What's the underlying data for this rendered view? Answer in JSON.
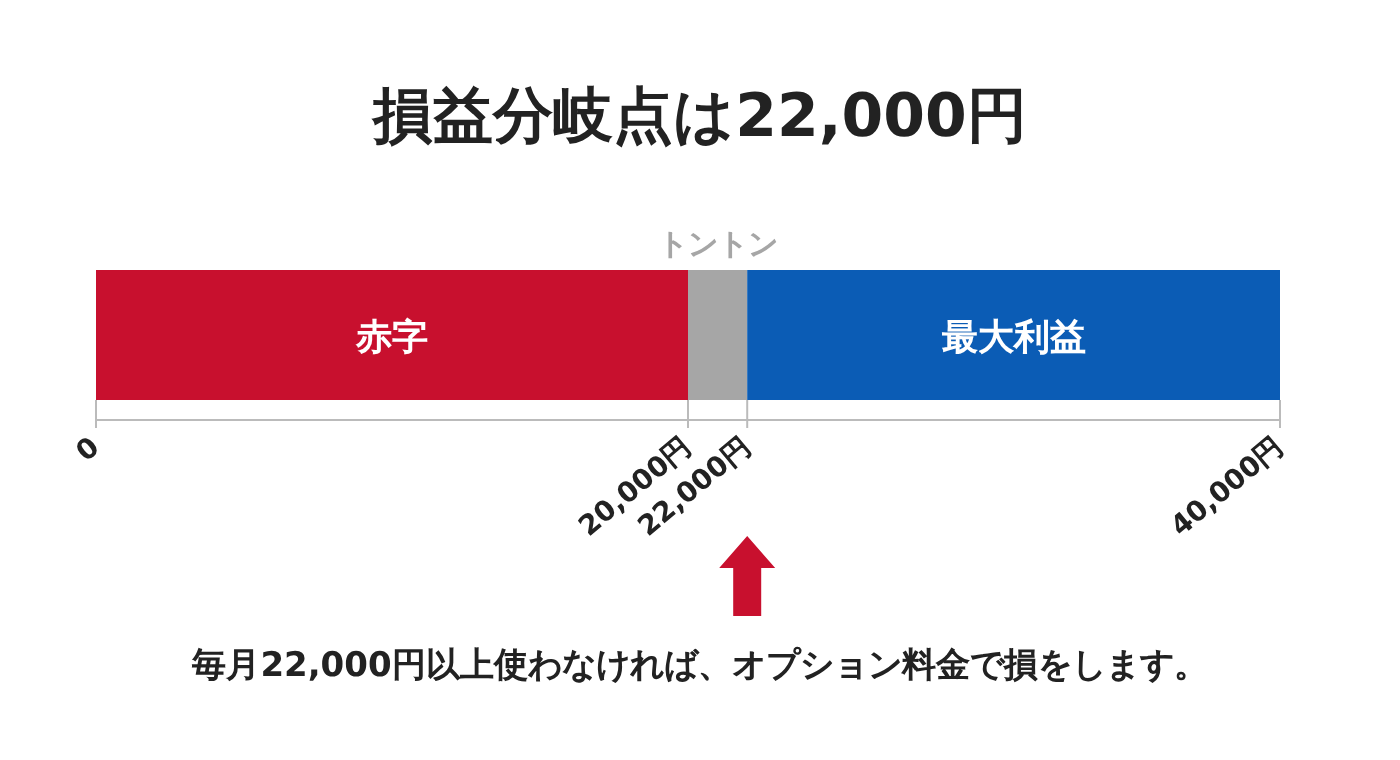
{
  "chart_data": {
    "type": "bar",
    "orientation": "horizontal",
    "stacked": true,
    "title": "損益分岐点は22,000円",
    "categories": [
      null
    ],
    "series": [
      {
        "name": "赤字",
        "color": "#c8102e",
        "values": [
          20000
        ]
      },
      {
        "name": "トントン",
        "color": "#a6a6a6",
        "values": [
          2000
        ]
      },
      {
        "name": "最大利益",
        "color": "#0b5cb5",
        "values": [
          18000
        ]
      }
    ],
    "xlim": [
      0,
      40000
    ],
    "xticks": [
      0,
      {
        "value": 20000,
        "label": "20,000円"
      },
      {
        "value": 22000,
        "label": "22,000円"
      },
      {
        "value": 40000,
        "label": "40,000円"
      }
    ],
    "annotations": [
      "毎月22,000円以上使わなければ、オプション料金で損をします。"
    ]
  }
}
